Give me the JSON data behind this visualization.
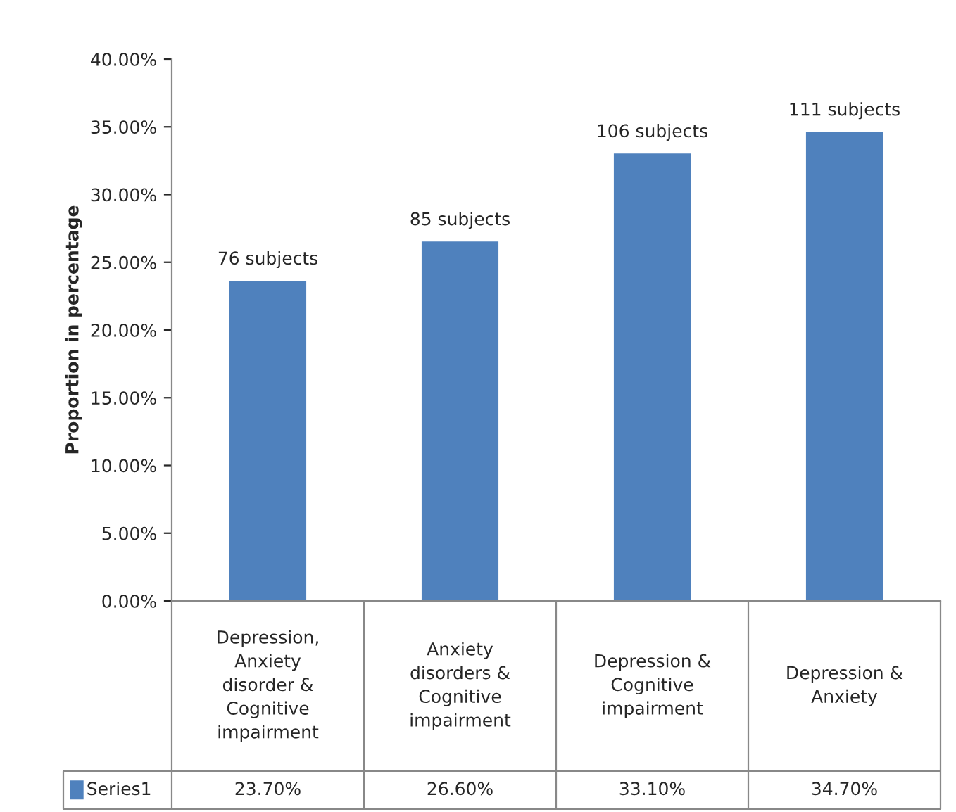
{
  "chart_data": {
    "type": "bar",
    "ylabel": "Proportion in percentage",
    "categories": [
      "Depression, Anxiety disorder & Cognitive impairment",
      "Anxiety disorders & Cognitive impairment",
      "Depression & Cognitive impairment",
      "Depression & Anxiety"
    ],
    "series": [
      {
        "name": "Series1",
        "color": "#4f81bd",
        "values": [
          23.7,
          26.6,
          33.1,
          34.7
        ],
        "value_labels": [
          "23.70%",
          "26.60%",
          "33.10%",
          "34.70%"
        ]
      }
    ],
    "ylim": [
      0,
      40
    ],
    "yticks": [
      {
        "value": 0,
        "label": "0.00%"
      },
      {
        "value": 5,
        "label": "5.00%"
      },
      {
        "value": 10,
        "label": "10.00%"
      },
      {
        "value": 15,
        "label": "15.00%"
      },
      {
        "value": 20,
        "label": "20.00%"
      },
      {
        "value": 25,
        "label": "25.00%"
      },
      {
        "value": 30,
        "label": "30.00%"
      },
      {
        "value": 35,
        "label": "35.00%"
      },
      {
        "value": 40,
        "label": "40.00%"
      }
    ],
    "annotations": [
      {
        "text": "76 subjects",
        "x": "Depression, Anxiety disorder & Cognitive impairment",
        "y": 23.7
      },
      {
        "text": "85 subjects",
        "x": "Anxiety disorders & Cognitive impairment",
        "y": 26.6
      },
      {
        "text": "106 subjects",
        "x": "Depression & Cognitive impairment",
        "y": 33.1
      },
      {
        "text": "111 subjects",
        "x": "Depression & Anxiety",
        "y": 34.7
      }
    ],
    "grid": false,
    "legend": "bottom"
  }
}
